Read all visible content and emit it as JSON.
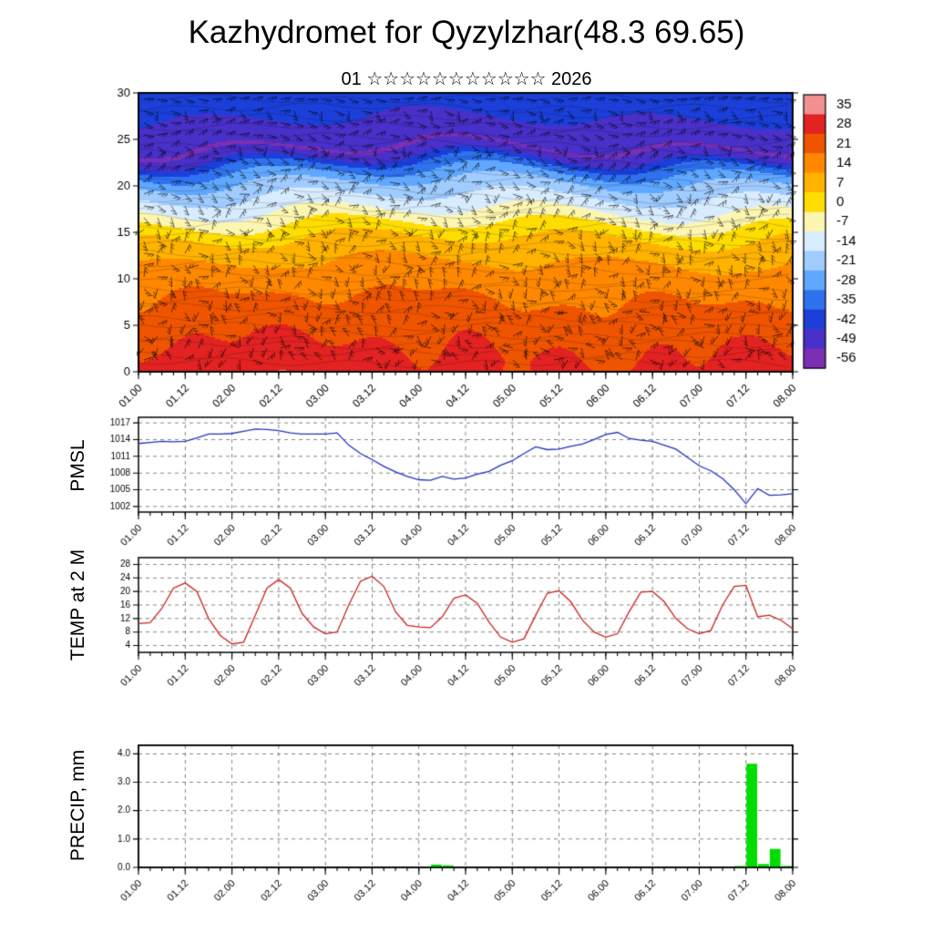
{
  "header": {
    "title": "Kazhydromet for Qyzylzhar(48.3 69.65)",
    "subtitle": "01 ☆☆☆☆☆☆☆☆☆☆☆ 2026"
  },
  "time_axis": {
    "tick_labels": [
      "01.00",
      "01.12",
      "02.00",
      "02.12",
      "03.00",
      "03.12",
      "04.00",
      "04.12",
      "05.00",
      "05.12",
      "06.00",
      "06.12",
      "07.00",
      "07.12",
      "08.00"
    ],
    "tick_hours": [
      0,
      12,
      24,
      36,
      48,
      60,
      72,
      84,
      96,
      108,
      120,
      132,
      144,
      156,
      168
    ],
    "minor_step_hours": 3,
    "total_hours": 168
  },
  "chart_data": [
    {
      "id": "cross_section",
      "type": "heatmap",
      "name": "temperature-wind-time-height-cross-section",
      "title": "",
      "xlabel": "",
      "ylabel": "",
      "ylim": [
        0,
        30
      ],
      "yticks": [
        0,
        5,
        10,
        15,
        20,
        25,
        30
      ],
      "colorbar_levels": [
        35,
        28,
        21,
        14,
        7,
        0,
        -7,
        -14,
        -21,
        -28,
        -35,
        -42,
        -49,
        -56
      ],
      "colorbar_labels": [
        "35",
        "28",
        "21",
        "14",
        "7",
        "0",
        "-7",
        "-14",
        "-21",
        "-28",
        "-35",
        "-42",
        "-49",
        "-56"
      ],
      "colorbar_colors": [
        "#f2918f",
        "#e32222",
        "#ef5500",
        "#ff8800",
        "#ffb300",
        "#ffdd00",
        "#fdf6b0",
        "#d8ecff",
        "#a0ccff",
        "#60a8ff",
        "#2e72f0",
        "#1b3fd8",
        "#4830c8",
        "#7b2fb4"
      ],
      "profile_heights": [
        0,
        3,
        6,
        9,
        12,
        14,
        15,
        16,
        17,
        18,
        20,
        22,
        23,
        24,
        26,
        28,
        30
      ],
      "profile_temps": [
        27,
        24,
        20,
        16,
        10,
        5,
        1,
        -4,
        -9,
        -14,
        -22,
        -35,
        -46,
        -53,
        -50,
        -43,
        -40
      ],
      "surface_anomaly_amplitude": 3.5,
      "barbs": true
    },
    {
      "id": "pmsl",
      "type": "line",
      "label": "PMSL",
      "color": "#2233bb",
      "ylim": [
        1001,
        1018
      ],
      "yticks": [
        1002,
        1005,
        1008,
        1011,
        1014,
        1017
      ],
      "x_step_hours": 3,
      "values": [
        1013.3,
        1013.5,
        1013.7,
        1013.6,
        1013.7,
        1014.3,
        1015.0,
        1015.0,
        1015.1,
        1015.5,
        1015.9,
        1015.8,
        1015.6,
        1015.2,
        1015.0,
        1015.0,
        1015.0,
        1015.2,
        1013.0,
        1011.5,
        1010.4,
        1009.2,
        1008.2,
        1007.4,
        1006.8,
        1006.7,
        1007.4,
        1006.9,
        1007.1,
        1007.8,
        1008.3,
        1009.4,
        1010.2,
        1011.5,
        1012.7,
        1012.2,
        1012.3,
        1012.8,
        1013.2,
        1014.0,
        1014.9,
        1015.3,
        1014.2,
        1013.9,
        1013.7,
        1013.0,
        1012.3,
        1010.8,
        1009.3,
        1008.4,
        1007.0,
        1005.0,
        1002.5,
        1005.2,
        1004.0,
        1004.1,
        1004.3
      ]
    },
    {
      "id": "temp2m",
      "type": "line",
      "label": "TEMP at 2 M",
      "color": "#cc2222",
      "ylim": [
        2,
        30
      ],
      "yticks": [
        4,
        8,
        12,
        16,
        20,
        24,
        28
      ],
      "x_step_hours": 3,
      "values": [
        10.5,
        10.8,
        15.0,
        21.0,
        22.5,
        20.0,
        12.0,
        7.0,
        4.5,
        5.0,
        13.0,
        21.0,
        23.5,
        21.0,
        13.5,
        9.5,
        7.5,
        8.0,
        16.0,
        23.0,
        24.5,
        21.5,
        14.0,
        10.0,
        9.5,
        9.3,
        12.5,
        18.0,
        19.0,
        16.5,
        11.0,
        6.5,
        5.0,
        6.0,
        13.0,
        19.5,
        20.2,
        17.0,
        11.5,
        8.0,
        6.5,
        7.5,
        14.0,
        19.8,
        20.0,
        17.0,
        12.0,
        9.0,
        7.5,
        8.5,
        16.0,
        21.5,
        21.8,
        12.5,
        13.0,
        11.5,
        9.0
      ]
    },
    {
      "id": "precip",
      "type": "bar",
      "label": "PRECIP, mm",
      "color": "#00dd00",
      "ylim": [
        0,
        4.3
      ],
      "yticks": [
        0,
        1,
        2,
        3,
        4
      ],
      "ytick_labels": [
        "0.0",
        "1.0",
        "2.0",
        "3.0",
        "4.0"
      ],
      "x_step_hours": 3,
      "values": [
        0,
        0,
        0,
        0,
        0,
        0,
        0,
        0,
        0,
        0,
        0,
        0,
        0,
        0,
        0,
        0,
        0,
        0,
        0,
        0,
        0,
        0,
        0,
        0,
        0,
        0.1,
        0.07,
        0,
        0,
        0,
        0,
        0,
        0,
        0,
        0,
        0,
        0,
        0,
        0,
        0,
        0,
        0,
        0,
        0,
        0,
        0,
        0,
        0,
        0,
        0,
        0,
        0.05,
        3.65,
        0.12,
        0.65,
        0.05,
        0
      ]
    }
  ]
}
